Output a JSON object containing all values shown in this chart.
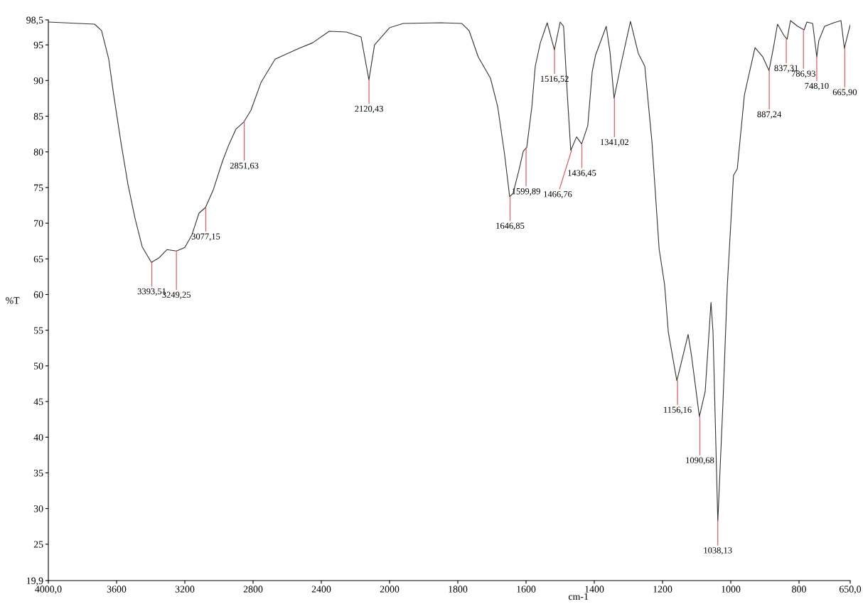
{
  "chart_data": [
    {
      "type": "line",
      "ylabel": "%T",
      "grid": false,
      "marker": "none",
      "line_style": "solid",
      "xlim": [
        4000,
        2000
      ],
      "ylim": [
        19.9,
        98.5
      ],
      "xticks": [
        {
          "value": 4000,
          "label": "4000,0"
        },
        3600,
        3200,
        2800,
        2400
      ],
      "yticks": [
        {
          "value": 19.9,
          "label": "19,9"
        },
        25,
        30,
        35,
        40,
        45,
        50,
        55,
        60,
        65,
        70,
        75,
        80,
        85,
        90,
        95,
        {
          "value": 98.5,
          "label": "98,5"
        }
      ],
      "series": [
        {
          "color": "#333333",
          "x": [
            4000,
            3729,
            3688,
            3646,
            3617,
            3575,
            3533,
            3492,
            3450,
            3396,
            3354,
            3304,
            3249,
            3200,
            3158,
            3117,
            3079,
            3033,
            2979,
            2942,
            2900,
            2854,
            2813,
            2754,
            2671,
            2533,
            2450,
            2354,
            2254,
            2167,
            2121,
            2088,
            2004,
            2000
          ],
          "values": [
            98.2,
            97.9,
            97.0,
            93.0,
            88.0,
            81.4,
            75.4,
            70.7,
            66.7,
            64.5,
            65.1,
            66.3,
            66.1,
            66.6,
            68.4,
            71.4,
            72.2,
            74.7,
            78.7,
            81.0,
            83.2,
            84.2,
            85.8,
            89.7,
            93.0,
            94.5,
            95.3,
            96.9,
            96.8,
            96.1,
            90.1,
            95.0,
            97.3,
            97.4
          ]
        }
      ],
      "annotations": [
        {
          "text": "3393,51",
          "x": 3393.51,
          "y": 64.5
        },
        {
          "text": "3249,25",
          "x": 3249.25,
          "y": 66.1
        },
        {
          "text": "3077,15",
          "x": 3077.15,
          "y": 72.2
        },
        {
          "text": "2851,63",
          "x": 2851.63,
          "y": 84.2
        },
        {
          "text": "2120,43",
          "x": 2120.43,
          "y": 90.1
        }
      ]
    },
    {
      "type": "line",
      "xlabel": "cm-1",
      "grid": false,
      "marker": "none",
      "line_style": "solid",
      "tick_labels": "x",
      "xlim": [
        2000,
        650
      ],
      "ylim": [
        19.9,
        98.5
      ],
      "xticks": [
        2000,
        1800,
        1600,
        1400,
        1200,
        1000,
        800,
        {
          "value": 650,
          "label": "650,0"
        }
      ],
      "series": [
        {
          "color": "#333333",
          "x": [
            2000,
            1960,
            1850,
            1788,
            1767,
            1740,
            1704,
            1683,
            1663,
            1648,
            1638,
            1621,
            1608,
            1598,
            1583,
            1573,
            1558,
            1538,
            1517,
            1500,
            1490,
            1479,
            1469,
            1452,
            1437,
            1419,
            1406,
            1396,
            1365,
            1354,
            1342,
            1323,
            1294,
            1271,
            1252,
            1231,
            1210,
            1194,
            1183,
            1158,
            1125,
            1115,
            1092,
            1075,
            1058,
            1052,
            1038,
            1023,
            1010,
            992,
            981,
            960,
            929,
            906,
            888,
            875,
            863,
            844,
            835,
            825,
            804,
            785,
            777,
            760,
            748,
            742,
            725,
            698,
            677,
            667,
            658,
            650
          ],
          "values": [
            97.4,
            98.0,
            98.1,
            98.0,
            97.0,
            93.3,
            90.3,
            86.3,
            79.7,
            73.7,
            74.2,
            77.4,
            80.1,
            80.6,
            86.3,
            92.0,
            95.3,
            98.1,
            94.3,
            98.2,
            97.6,
            88.0,
            80.2,
            82.1,
            81.1,
            83.7,
            91.3,
            93.6,
            97.6,
            94.0,
            87.5,
            92.0,
            98.3,
            93.8,
            92.0,
            81.4,
            66.4,
            61.4,
            54.7,
            47.9,
            54.4,
            51.4,
            42.9,
            46.4,
            58.9,
            54.7,
            28.2,
            44.7,
            61.4,
            76.7,
            77.6,
            88.0,
            94.6,
            93.3,
            91.4,
            94.6,
            97.9,
            96.3,
            95.8,
            98.4,
            97.6,
            97.1,
            98.2,
            98.0,
            93.3,
            95.6,
            97.6,
            98.1,
            98.4,
            94.5,
            96.3,
            97.8
          ]
        }
      ],
      "annotations": [
        {
          "text": "1646,85",
          "x": 1646.85,
          "y": 73.7
        },
        {
          "text": "1599,89",
          "x": 1599.89,
          "y": 80.6
        },
        {
          "text": "1516,52",
          "x": 1516.52,
          "y": 94.3
        },
        {
          "text": "1466,76",
          "x": 1466.76,
          "y": 80.2
        },
        {
          "text": "1436,45",
          "x": 1436.45,
          "y": 81.1
        },
        {
          "text": "1341,02",
          "x": 1341.02,
          "y": 87.5
        },
        {
          "text": "1156,16",
          "x": 1156.16,
          "y": 47.9
        },
        {
          "text": "1090,68",
          "x": 1090.68,
          "y": 42.9
        },
        {
          "text": "1038,13",
          "x": 1038.13,
          "y": 28.2
        },
        {
          "text": "887,24",
          "x": 887.24,
          "y": 91.4
        },
        {
          "text": "837,31",
          "x": 837.31,
          "y": 95.8
        },
        {
          "text": "786,93",
          "x": 786.93,
          "y": 97.1
        },
        {
          "text": "748,10",
          "x": 748.1,
          "y": 93.3
        },
        {
          "text": "665,90",
          "x": 665.9,
          "y": 94.5
        }
      ]
    }
  ]
}
